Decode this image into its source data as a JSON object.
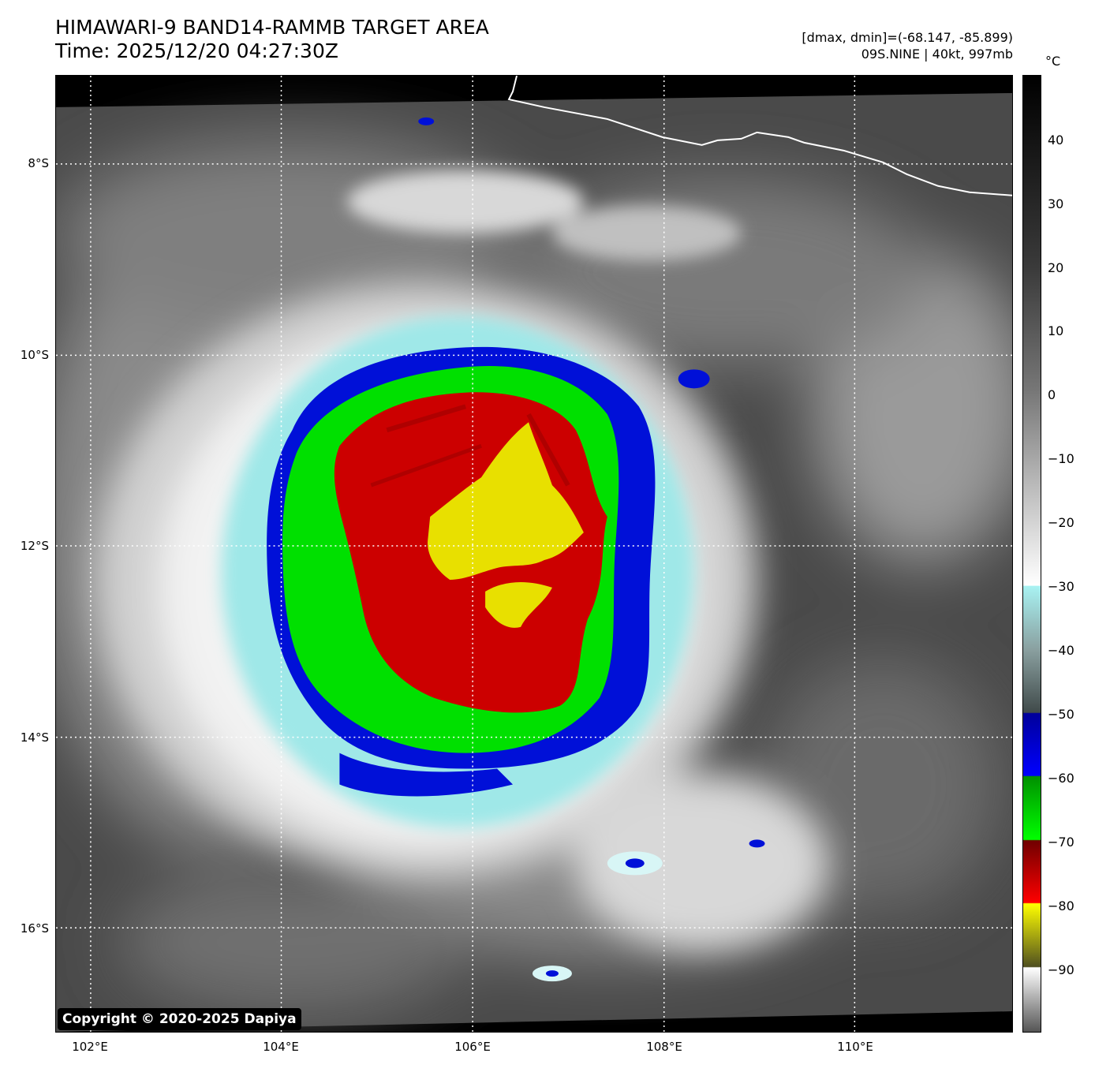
{
  "header": {
    "title_line1": "HIMAWARI-9 BAND14-RAMMB TARGET AREA",
    "title_line2": "Time: 2025/12/20 04:27:30Z",
    "meta_line1": "[dmax, dmin]=(-68.147, -85.899)",
    "meta_line2": "09S.NINE | 40kt, 997mb"
  },
  "map": {
    "copyright": "Copyright © 2020-2025 Dapiya",
    "lat_ticks": [
      "8°S",
      "10°S",
      "12°S",
      "14°S",
      "16°S"
    ],
    "lon_ticks": [
      "102°E",
      "104°E",
      "106°E",
      "108°E",
      "110°E"
    ]
  },
  "colorbar": {
    "unit": "°C",
    "ticks": [
      "40",
      "30",
      "20",
      "10",
      "0",
      "−10",
      "−20",
      "−30",
      "−40",
      "−50",
      "−60",
      "−70",
      "−80",
      "−90"
    ],
    "colors": {
      "cyan": "#a8f2f2",
      "blue": "#0000ff",
      "green": "#00dd00",
      "red": "#d00000",
      "yellow": "#ffff00"
    }
  }
}
